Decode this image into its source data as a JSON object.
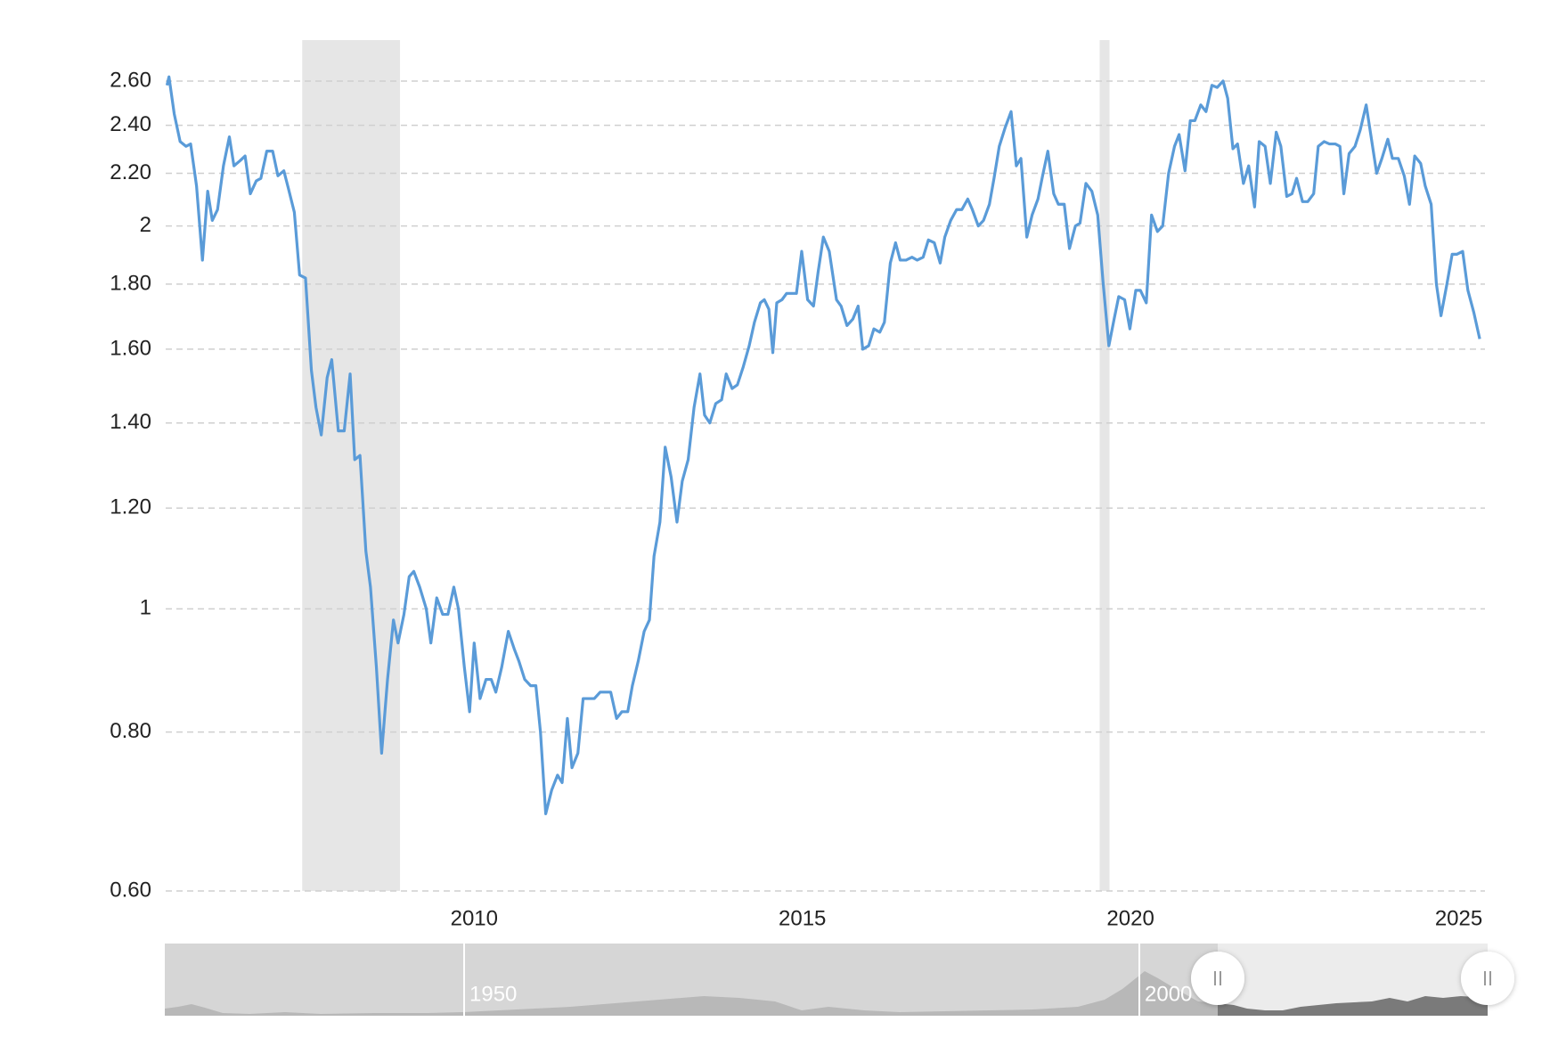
{
  "chart_data": {
    "type": "line",
    "log_scale": true,
    "grid": true,
    "color": "#5a9bd8",
    "xlim": [
      2005.3,
      2025.4
    ],
    "xticks": [
      2010,
      2015,
      2020,
      2025
    ],
    "ylim": [
      0.6,
      2.8
    ],
    "yticks": [
      {
        "value": 0.6,
        "label": "0.60"
      },
      {
        "value": 0.8,
        "label": "0.80"
      },
      1,
      {
        "value": 1.2,
        "label": "1.20"
      },
      {
        "value": 1.4,
        "label": "1.40"
      },
      {
        "value": 1.6,
        "label": "1.60"
      },
      {
        "value": 1.8,
        "label": "1.80"
      },
      2,
      {
        "value": 2.2,
        "label": "2.20"
      },
      {
        "value": 2.4,
        "label": "2.40"
      },
      {
        "value": 2.6,
        "label": "2.60"
      }
    ],
    "shaded_ranges": [
      [
        2007.38,
        2008.87
      ],
      [
        2019.53,
        2019.68
      ]
    ],
    "x": [
      2005.32,
      2005.35,
      2005.43,
      2005.52,
      2005.61,
      2005.68,
      2005.77,
      2005.86,
      2005.94,
      2006.01,
      2006.09,
      2006.18,
      2006.27,
      2006.34,
      2006.43,
      2006.51,
      2006.59,
      2006.68,
      2006.75,
      2006.84,
      2006.93,
      2007.01,
      2007.1,
      2007.17,
      2007.26,
      2007.34,
      2007.43,
      2007.52,
      2007.59,
      2007.67,
      2007.76,
      2007.83,
      2007.93,
      2008.02,
      2008.11,
      2008.18,
      2008.26,
      2008.35,
      2008.42,
      2008.51,
      2008.59,
      2008.68,
      2008.77,
      2008.84,
      2008.93,
      2009.01,
      2009.08,
      2009.17,
      2009.27,
      2009.34,
      2009.43,
      2009.52,
      2009.6,
      2009.69,
      2009.76,
      2009.85,
      2009.93,
      2010.0,
      2010.09,
      2010.18,
      2010.26,
      2010.33,
      2010.42,
      2010.52,
      2010.61,
      2010.68,
      2010.77,
      2010.86,
      2010.94,
      2011.01,
      2011.09,
      2011.18,
      2011.27,
      2011.34,
      2011.42,
      2011.49,
      2011.58,
      2011.66,
      2011.75,
      2011.83,
      2011.92,
      2011.99,
      2012.08,
      2012.17,
      2012.25,
      2012.34,
      2012.41,
      2012.5,
      2012.59,
      2012.67,
      2012.74,
      2012.83,
      2012.91,
      2013.0,
      2013.09,
      2013.17,
      2013.26,
      2013.35,
      2013.44,
      2013.51,
      2013.59,
      2013.68,
      2013.77,
      2013.84,
      2013.93,
      2014.01,
      2014.1,
      2014.19,
      2014.27,
      2014.36,
      2014.42,
      2014.49,
      2014.55,
      2014.61,
      2014.69,
      2014.76,
      2014.84,
      2014.91,
      2014.99,
      2015.08,
      2015.17,
      2015.24,
      2015.32,
      2015.41,
      2015.52,
      2015.59,
      2015.68,
      2015.77,
      2015.85,
      2015.92,
      2016.01,
      2016.09,
      2016.18,
      2016.25,
      2016.34,
      2016.42,
      2016.49,
      2016.58,
      2016.67,
      2016.75,
      2016.84,
      2016.92,
      2017.01,
      2017.1,
      2017.17,
      2017.26,
      2017.35,
      2017.43,
      2017.52,
      2017.59,
      2017.68,
      2017.76,
      2017.85,
      2017.92,
      2018.0,
      2018.09,
      2018.18,
      2018.26,
      2018.33,
      2018.42,
      2018.5,
      2018.59,
      2018.66,
      2018.74,
      2018.83,
      2018.9,
      2018.99,
      2019.07,
      2019.16,
      2019.23,
      2019.32,
      2019.41,
      2019.5,
      2019.58,
      2019.67,
      2019.75,
      2019.82,
      2019.91,
      2019.99,
      2020.08,
      2020.15,
      2020.24,
      2020.32,
      2020.41,
      2020.49,
      2020.58,
      2020.67,
      2020.74,
      2020.83,
      2020.91,
      2020.98,
      2021.07,
      2021.15,
      2021.24,
      2021.32,
      2021.41,
      2021.48,
      2021.56,
      2021.63,
      2021.72,
      2021.8,
      2021.89,
      2021.96,
      2022.05,
      2022.13,
      2022.22,
      2022.29,
      2022.38,
      2022.46,
      2022.53,
      2022.62,
      2022.7,
      2022.79,
      2022.86,
      2022.95,
      2023.03,
      2023.12,
      2023.19,
      2023.25,
      2023.33,
      2023.42,
      2023.5,
      2023.59,
      2023.66,
      2023.75,
      2023.83,
      2023.92,
      2023.99,
      2024.08,
      2024.17,
      2024.25,
      2024.33,
      2024.42,
      2024.49,
      2024.58,
      2024.66,
      2024.73,
      2024.82,
      2024.9,
      2024.97,
      2025.06,
      2025.14,
      2025.23,
      2025.32
    ],
    "values": [
      2.58,
      2.62,
      2.45,
      2.33,
      2.31,
      2.32,
      2.15,
      1.88,
      2.13,
      2.02,
      2.06,
      2.23,
      2.35,
      2.23,
      2.25,
      2.27,
      2.12,
      2.17,
      2.18,
      2.29,
      2.29,
      2.19,
      2.21,
      2.14,
      2.05,
      1.83,
      1.82,
      1.54,
      1.44,
      1.37,
      1.52,
      1.57,
      1.38,
      1.38,
      1.53,
      1.31,
      1.32,
      1.11,
      1.04,
      0.9,
      0.77,
      0.88,
      0.98,
      0.94,
      0.99,
      1.06,
      1.07,
      1.04,
      1.0,
      0.94,
      1.02,
      0.99,
      0.99,
      1.04,
      1.0,
      0.9,
      0.83,
      0.94,
      0.85,
      0.88,
      0.88,
      0.86,
      0.9,
      0.96,
      0.93,
      0.91,
      0.88,
      0.87,
      0.87,
      0.8,
      0.69,
      0.72,
      0.74,
      0.73,
      0.82,
      0.75,
      0.77,
      0.85,
      0.85,
      0.85,
      0.86,
      0.86,
      0.86,
      0.82,
      0.83,
      0.83,
      0.87,
      0.91,
      0.96,
      0.98,
      1.1,
      1.17,
      1.34,
      1.27,
      1.17,
      1.26,
      1.31,
      1.44,
      1.53,
      1.42,
      1.4,
      1.45,
      1.46,
      1.53,
      1.49,
      1.5,
      1.55,
      1.61,
      1.68,
      1.74,
      1.75,
      1.72,
      1.59,
      1.74,
      1.75,
      1.77,
      1.77,
      1.77,
      1.91,
      1.75,
      1.73,
      1.84,
      1.96,
      1.91,
      1.75,
      1.73,
      1.67,
      1.69,
      1.73,
      1.6,
      1.61,
      1.66,
      1.65,
      1.68,
      1.87,
      1.94,
      1.88,
      1.88,
      1.89,
      1.88,
      1.89,
      1.95,
      1.94,
      1.87,
      1.96,
      2.02,
      2.06,
      2.06,
      2.1,
      2.06,
      2.0,
      2.02,
      2.08,
      2.18,
      2.31,
      2.39,
      2.46,
      2.23,
      2.26,
      1.96,
      2.04,
      2.1,
      2.19,
      2.29,
      2.12,
      2.08,
      2.08,
      1.92,
      2.0,
      2.01,
      2.16,
      2.13,
      2.04,
      1.81,
      1.61,
      1.69,
      1.76,
      1.75,
      1.66,
      1.78,
      1.78,
      1.74,
      2.04,
      1.98,
      2.0,
      2.2,
      2.31,
      2.36,
      2.21,
      2.42,
      2.42,
      2.49,
      2.46,
      2.58,
      2.57,
      2.6,
      2.52,
      2.3,
      2.32,
      2.16,
      2.23,
      2.07,
      2.33,
      2.31,
      2.16,
      2.37,
      2.31,
      2.11,
      2.12,
      2.18,
      2.09,
      2.09,
      2.12,
      2.31,
      2.33,
      2.32,
      2.32,
      2.31,
      2.12,
      2.28,
      2.31,
      2.38,
      2.49,
      2.36,
      2.2,
      2.26,
      2.34,
      2.26,
      2.26,
      2.19,
      2.08,
      2.27,
      2.24,
      2.15,
      2.08,
      1.8,
      1.7,
      1.8,
      1.9,
      1.9,
      1.91,
      1.78,
      1.71,
      1.63
    ],
    "navigator": {
      "labels": [
        "1950",
        "2000"
      ]
    }
  }
}
